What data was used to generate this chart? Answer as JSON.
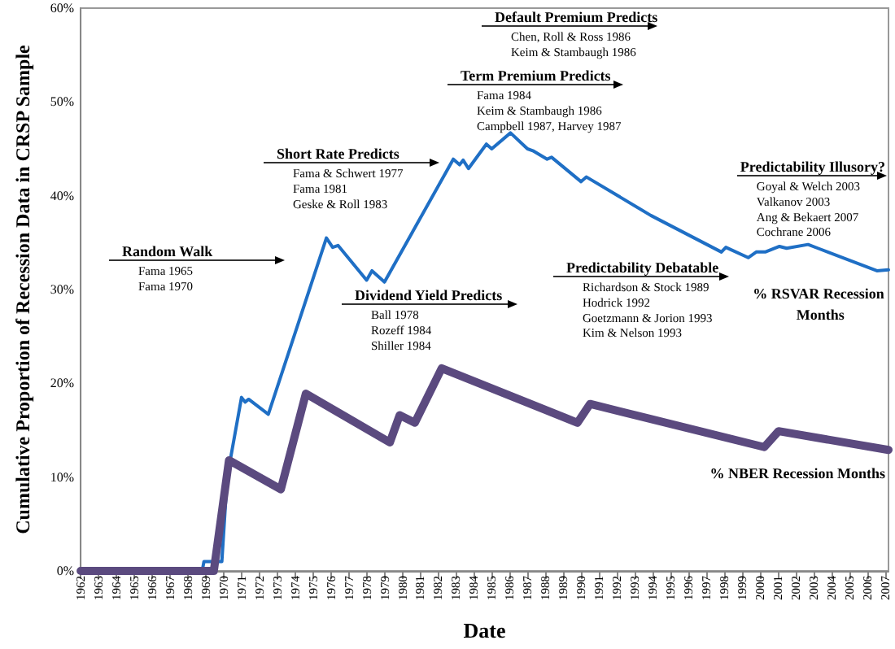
{
  "chart_data": {
    "type": "line",
    "xlabel": "Date",
    "ylabel": "Cumulative Proportion of Recession Data in CRSP Sample",
    "xlim": [
      1962,
      2007.2
    ],
    "xticks": [
      1962,
      1963,
      1964,
      1965,
      1966,
      1967,
      1968,
      1969,
      1970,
      1971,
      1972,
      1973,
      1974,
      1975,
      1976,
      1977,
      1978,
      1979,
      1980,
      1981,
      1982,
      1983,
      1984,
      1985,
      1986,
      1987,
      1988,
      1989,
      1990,
      1991,
      1992,
      1993,
      1994,
      1995,
      1996,
      1997,
      1998,
      1999,
      2000,
      2001,
      2002,
      2003,
      2004,
      2005,
      2006,
      2007
    ],
    "ylim": [
      0,
      60
    ],
    "yticks": [
      {
        "value": 0,
        "label": "0%"
      },
      {
        "value": 10,
        "label": "10%"
      },
      {
        "value": 20,
        "label": "20%"
      },
      {
        "value": 30,
        "label": "30%"
      },
      {
        "value": 40,
        "label": "40%"
      },
      {
        "value": 50,
        "label": "50%"
      },
      {
        "value": 60,
        "label": "60%"
      }
    ],
    "grid": false,
    "legend": false,
    "marker": "none",
    "line_style": "solid",
    "series": [
      {
        "name": "% RSVAR Recession Months",
        "color": "#1f6fc5",
        "x": [
          1962,
          1968.8,
          1968.9,
          1969.9,
          1970.2,
          1971.0,
          1971.2,
          1971.4,
          1972.5,
          1975.75,
          1976.1,
          1976.4,
          1978.0,
          1978.3,
          1979.0,
          1982.85,
          1983.2,
          1983.4,
          1983.7,
          1984.7,
          1985.0,
          1986.05,
          1987.0,
          1987.3,
          1988.1,
          1988.35,
          1990.0,
          1990.3,
          1993.9,
          1997.85,
          1998.1,
          1999.35,
          1999.8,
          2000.3,
          2001.1,
          2001.5,
          2002.7,
          2003.25,
          2006.55,
          2007.2
        ],
        "values": [
          0,
          0,
          1,
          1,
          10,
          18.5,
          18,
          18.3,
          16.7,
          35.5,
          34.5,
          34.7,
          31,
          32,
          30.8,
          43.9,
          43.3,
          43.8,
          42.9,
          45.5,
          45,
          46.7,
          45,
          44.8,
          43.9,
          44.1,
          41.5,
          42,
          37.9,
          34,
          34.5,
          33.4,
          34,
          34,
          34.6,
          34.4,
          34.8,
          34.4,
          32,
          32.1
        ]
      },
      {
        "name": "% NBER Recession Months",
        "color": "#5b4a7f",
        "x": [
          1962,
          1969.45,
          1970.3,
          1973.2,
          1974.6,
          1979.3,
          1979.85,
          1980.7,
          1982.2,
          1989.8,
          1990.5,
          2000.25,
          2001.05,
          2007.2
        ],
        "values": [
          0,
          0,
          11.8,
          8.7,
          18.9,
          13.7,
          16.6,
          15.8,
          21.6,
          15.8,
          17.8,
          13.2,
          14.9,
          12.9
        ]
      }
    ],
    "annotations": [
      "Random Walk\nFama 1965\nFama 1970",
      "Short Rate Predicts\nFama & Schwert 1977\nFama 1981\nGeske & Roll 1983",
      "Dividend Yield Predicts\nBall 1978\nRozeff 1984\nShiller 1984",
      "Term Premium Predicts\nFama 1984\nKeim & Stambaugh 1986\nCampbell 1987, Harvey 1987",
      "Default Premium Predicts\nChen, Roll & Ross 1986\nKeim & Stambaugh 1986",
      "Predictability Debatable\nRichardson & Stock 1989\nHodrick 1992\nGoetzmann & Jorion 1993\nKim & Nelson 1993",
      "Predictability Illusory?\nGoyal & Welch 2003\nValkanov 2003\nAng & Bekaert 2007\nCochrane 2006"
    ]
  }
}
